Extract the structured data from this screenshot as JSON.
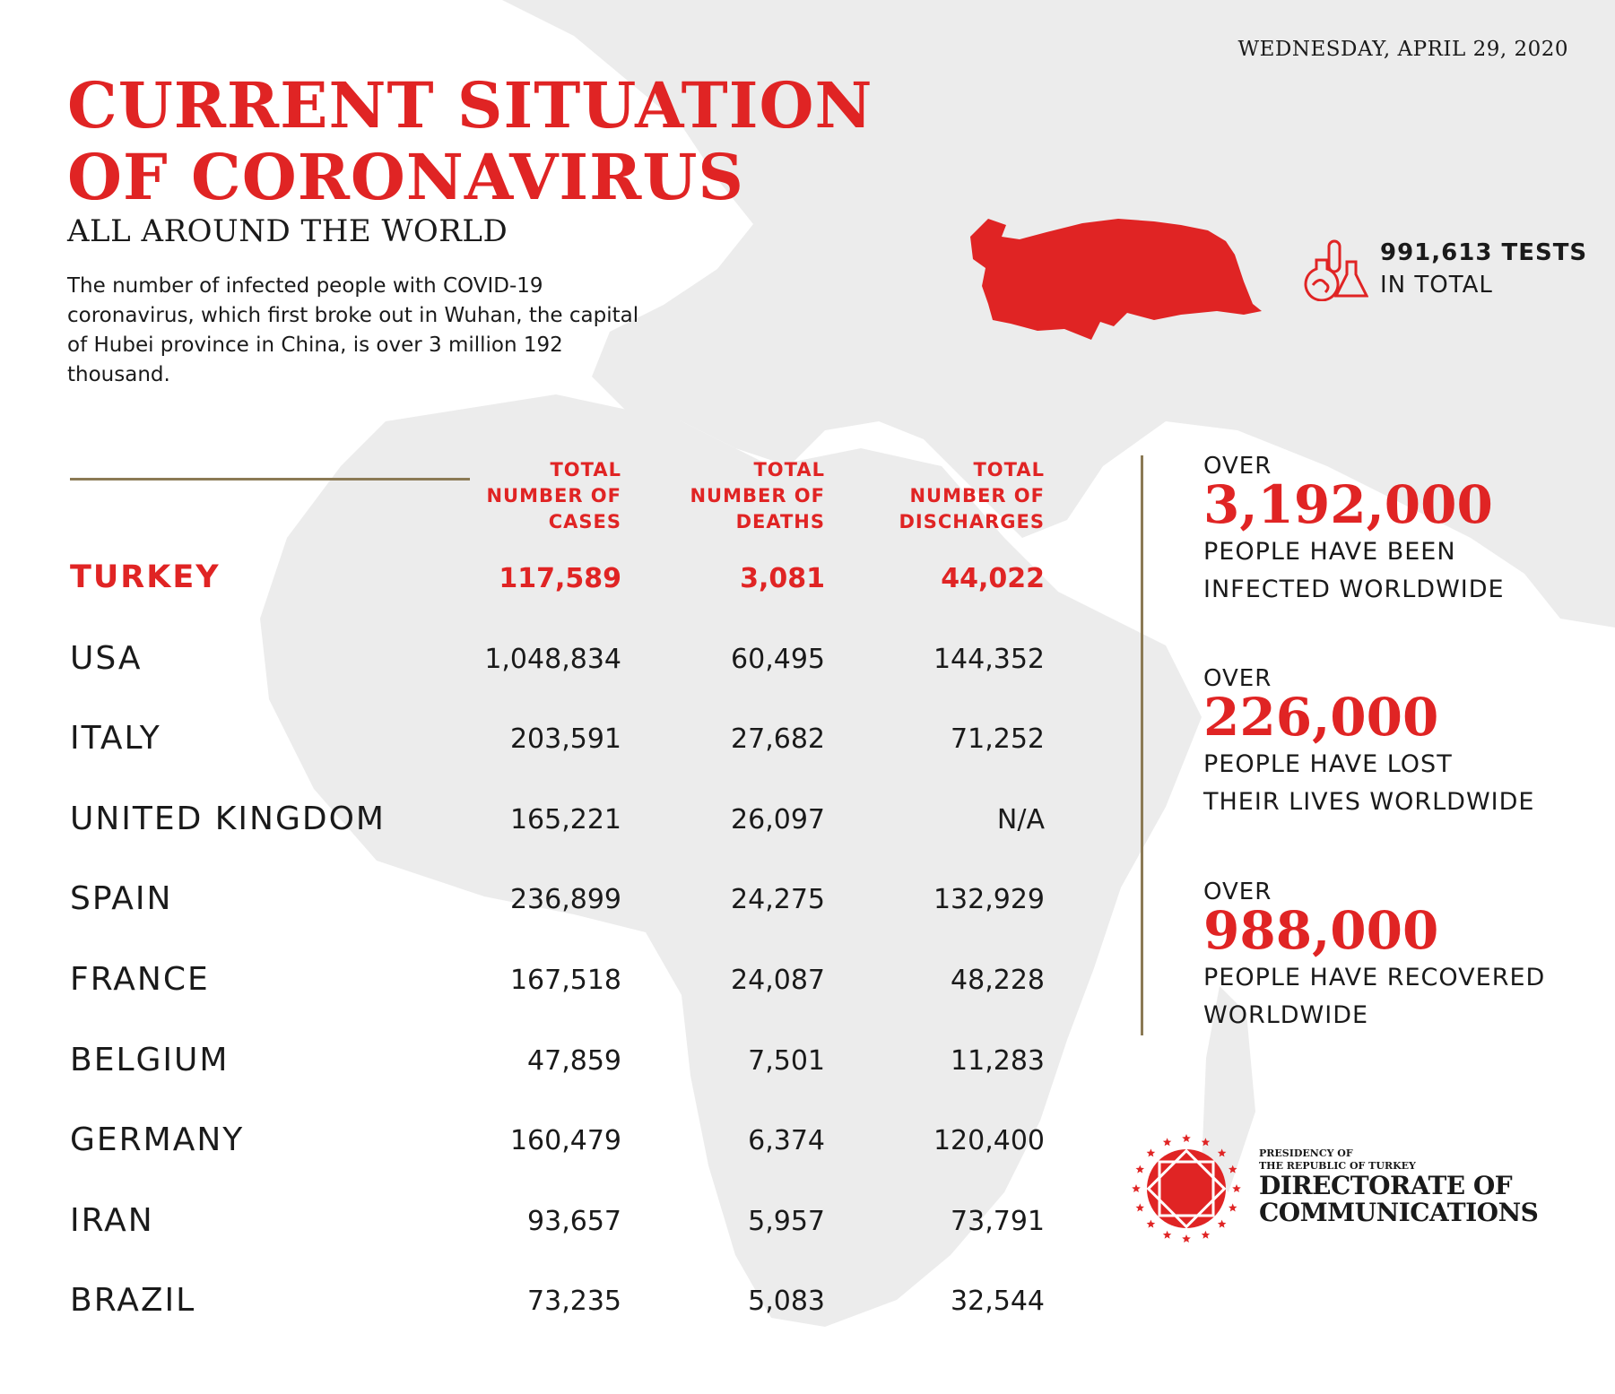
{
  "date": "WEDNESDAY, APRIL 29, 2020",
  "title_line1": "CURRENT SITUATION",
  "title_line2": "OF CORONAVIRUS",
  "subtitle": "ALL AROUND THE WORLD",
  "intro": "The number of infected people with COVID-19 coronavirus, which first broke out in Wuhan, the capital of Hubei province in China, is over 3 million 192 thousand.",
  "tests": {
    "value": "991,613 TESTS",
    "label": "IN TOTAL",
    "icon": "flasks-icon"
  },
  "colors": {
    "accent": "#e02424",
    "divider": "#8b7a55",
    "map": "#ededed"
  },
  "table": {
    "headers": [
      [
        "TOTAL",
        "NUMBER OF",
        "CASES"
      ],
      [
        "TOTAL",
        "NUMBER OF",
        "DEATHS"
      ],
      [
        "TOTAL",
        "NUMBER OF",
        "DISCHARGES"
      ]
    ],
    "rows": [
      {
        "country": "TURKEY",
        "cases": "117,589",
        "deaths": "3,081",
        "discharges": "44,022"
      },
      {
        "country": "USA",
        "cases": "1,048,834",
        "deaths": "60,495",
        "discharges": "144,352"
      },
      {
        "country": "ITALY",
        "cases": "203,591",
        "deaths": "27,682",
        "discharges": "71,252"
      },
      {
        "country": "UNITED KINGDOM",
        "cases": "165,221",
        "deaths": "26,097",
        "discharges": "N/A"
      },
      {
        "country": "SPAIN",
        "cases": "236,899",
        "deaths": "24,275",
        "discharges": "132,929"
      },
      {
        "country": "FRANCE",
        "cases": "167,518",
        "deaths": "24,087",
        "discharges": "48,228"
      },
      {
        "country": "BELGIUM",
        "cases": "47,859",
        "deaths": "7,501",
        "discharges": "11,283"
      },
      {
        "country": "GERMANY",
        "cases": "160,479",
        "deaths": "6,374",
        "discharges": "120,400"
      },
      {
        "country": "IRAN",
        "cases": "93,657",
        "deaths": "5,957",
        "discharges": "73,791"
      },
      {
        "country": "BRAZIL",
        "cases": "73,235",
        "deaths": "5,083",
        "discharges": "32,544"
      }
    ]
  },
  "stats": [
    {
      "over": "OVER",
      "value": "3,192,000",
      "line1": "PEOPLE HAVE BEEN",
      "line2": "INFECTED WORLDWIDE"
    },
    {
      "over": "OVER",
      "value": "226,000",
      "line1": "PEOPLE HAVE LOST",
      "line2": "THEIR LIVES WORLDWIDE"
    },
    {
      "over": "OVER",
      "value": "988,000",
      "line1": "PEOPLE HAVE RECOVERED",
      "line2": "WORLDWIDE"
    }
  ],
  "logo": {
    "line1": "PRESIDENCY OF",
    "line2": "THE REPUBLIC OF TURKEY",
    "line3": "DIRECTORATE OF",
    "line4": "COMMUNICATIONS"
  }
}
